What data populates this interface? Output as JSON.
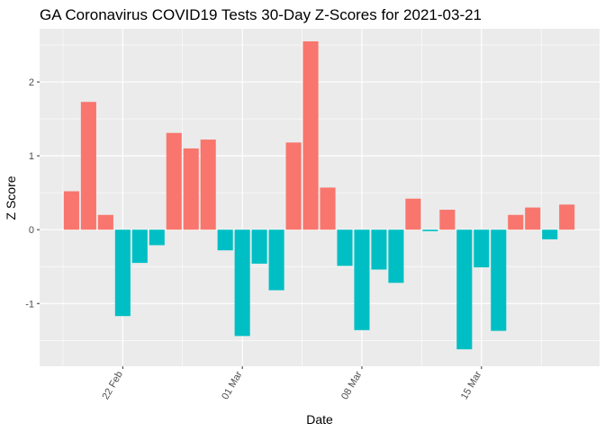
{
  "chart_data": {
    "type": "bar",
    "title": "GA Coronavirus COVID19 Tests 30-Day Z-Scores for 2021-03-21",
    "xlabel": "Date",
    "ylabel": "Z Score",
    "ylim": [
      -1.85,
      2.72
    ],
    "y_ticks": [
      -1,
      0,
      1,
      2
    ],
    "x_ticks": [
      {
        "label": "22 Feb",
        "day_index": 3
      },
      {
        "label": "01 Mar",
        "day_index": 10
      },
      {
        "label": "08 Mar",
        "day_index": 17
      },
      {
        "label": "15 Mar",
        "day_index": 24
      }
    ],
    "categories": [
      "2021-02-19",
      "2021-02-20",
      "2021-02-21",
      "2021-02-22",
      "2021-02-23",
      "2021-02-24",
      "2021-02-25",
      "2021-02-26",
      "2021-02-27",
      "2021-02-28",
      "2021-03-01",
      "2021-03-02",
      "2021-03-03",
      "2021-03-04",
      "2021-03-05",
      "2021-03-06",
      "2021-03-07",
      "2021-03-08",
      "2021-03-09",
      "2021-03-10",
      "2021-03-11",
      "2021-03-12",
      "2021-03-13",
      "2021-03-14",
      "2021-03-15",
      "2021-03-16",
      "2021-03-17",
      "2021-03-18",
      "2021-03-19",
      "2021-03-20"
    ],
    "values": [
      0.52,
      1.73,
      0.2,
      -1.17,
      -0.45,
      -0.21,
      1.31,
      1.1,
      1.22,
      -0.28,
      -1.44,
      -0.46,
      -0.82,
      1.18,
      2.55,
      0.57,
      -0.49,
      -1.36,
      -0.54,
      -0.72,
      0.42,
      -0.02,
      0.27,
      -1.62,
      -0.51,
      -1.37,
      0.2,
      0.3,
      -0.13,
      0.34
    ],
    "colors": {
      "positive": "#f8766d",
      "negative": "#00bfc4"
    },
    "grid": true,
    "legend": "none"
  }
}
